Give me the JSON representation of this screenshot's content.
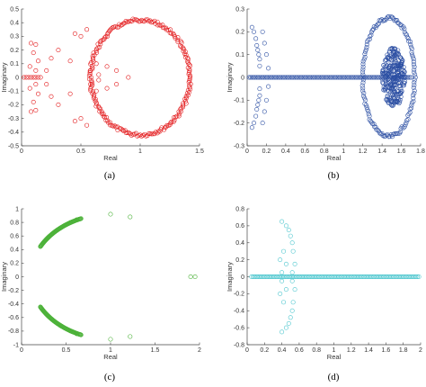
{
  "figure": {
    "captions": [
      "(a)",
      "(b)",
      "(c)",
      "(d)"
    ]
  },
  "chart_data": [
    {
      "type": "scatter",
      "panel": "(a)",
      "xlabel": "Real",
      "ylabel": "Imaginary",
      "xlim": [
        0,
        1.5
      ],
      "ylim": [
        -0.5,
        0.5
      ],
      "xticks": [
        "0",
        "0.5",
        "1",
        "1.5"
      ],
      "yticks": [
        "-0.5",
        "-0.4",
        "-0.3",
        "-0.2",
        "-0.1",
        "0",
        "0.1",
        "0.2",
        "0.3",
        "0.4",
        "0.5"
      ],
      "marker": "open-circle",
      "color": "#e31a1c",
      "grid": false,
      "series": [
        {
          "points": [
            [
              0.02,
              0
            ],
            [
              0.04,
              0
            ],
            [
              0.06,
              0
            ],
            [
              0.08,
              0
            ],
            [
              0.1,
              0
            ],
            [
              0.12,
              0
            ],
            [
              0.14,
              0
            ],
            [
              0.16,
              0
            ],
            [
              0.08,
              0.25
            ],
            [
              0.12,
              0.24
            ],
            [
              0.1,
              0.18
            ],
            [
              0.14,
              0.12
            ],
            [
              0.07,
              0.08
            ],
            [
              0.12,
              0.05
            ],
            [
              0.08,
              -0.25
            ],
            [
              0.12,
              -0.24
            ],
            [
              0.1,
              -0.18
            ],
            [
              0.14,
              -0.12
            ],
            [
              0.07,
              -0.08
            ],
            [
              0.12,
              -0.05
            ],
            [
              0.21,
              0.05
            ],
            [
              0.21,
              -0.05
            ],
            [
              0.25,
              0.14
            ],
            [
              0.25,
              -0.14
            ],
            [
              0.31,
              0.2
            ],
            [
              0.31,
              -0.2
            ],
            [
              0.41,
              0.12
            ],
            [
              0.41,
              -0.12
            ],
            [
              0.45,
              0.32
            ],
            [
              0.45,
              -0.32
            ],
            [
              0.5,
              0.3
            ],
            [
              0.5,
              -0.3
            ],
            [
              0.55,
              0.35
            ],
            [
              0.55,
              -0.35
            ],
            [
              0.58,
              0.05
            ],
            [
              0.58,
              -0.05
            ],
            [
              0.65,
              0.02
            ],
            [
              0.65,
              -0.02
            ],
            [
              0.8,
              0.05
            ],
            [
              0.8,
              -0.05
            ],
            [
              0.9,
              0
            ],
            [
              0.63,
              0.1
            ],
            [
              0.63,
              -0.1
            ],
            [
              0.72,
              0.08
            ],
            [
              0.72,
              -0.08
            ]
          ]
        }
      ],
      "ring": {
        "center": [
          1.0,
          0
        ],
        "rx": 0.42,
        "ry": 0.42,
        "count": 220,
        "color": "#e31a1c"
      }
    },
    {
      "type": "scatter",
      "panel": "(b)",
      "xlabel": "Real",
      "ylabel": "Imaginary",
      "xlim": [
        0,
        1.8
      ],
      "ylim": [
        -0.3,
        0.3
      ],
      "xticks": [
        "0",
        "0.2",
        "0.4",
        "0.6",
        "0.8",
        "1",
        "1.2",
        "1.4",
        "1.6",
        "1.8"
      ],
      "yticks": [
        "-0.3",
        "-0.2",
        "-0.1",
        "0",
        "0.1",
        "0.2",
        "0.3"
      ],
      "marker": "open-circle",
      "color": "#2c4fa3",
      "grid": false,
      "series": [
        {
          "points": [
            [
              0.05,
              0.22
            ],
            [
              0.07,
              0.2
            ],
            [
              0.09,
              0.17
            ],
            [
              0.1,
              0.14
            ],
            [
              0.11,
              0.12
            ],
            [
              0.12,
              0.1
            ],
            [
              0.13,
              0.08
            ],
            [
              0.13,
              0.05
            ],
            [
              0.05,
              -0.22
            ],
            [
              0.07,
              -0.2
            ],
            [
              0.09,
              -0.17
            ],
            [
              0.1,
              -0.14
            ],
            [
              0.11,
              -0.12
            ],
            [
              0.12,
              -0.1
            ],
            [
              0.13,
              -0.08
            ],
            [
              0.13,
              -0.05
            ],
            [
              0.16,
              0.2
            ],
            [
              0.18,
              0.15
            ],
            [
              0.2,
              0.1
            ],
            [
              0.16,
              -0.2
            ],
            [
              0.18,
              -0.15
            ],
            [
              0.2,
              -0.1
            ],
            [
              0.22,
              0.04
            ],
            [
              0.22,
              -0.04
            ]
          ]
        }
      ],
      "ring": {
        "center": [
          1.47,
          0
        ],
        "rx": 0.27,
        "ry": 0.26,
        "count": 140,
        "color": "#2c4fa3"
      },
      "cluster": {
        "center": [
          1.52,
          0
        ],
        "rx": 0.12,
        "ry": 0.13,
        "count": 260
      },
      "real_line": {
        "from": 0.02,
        "to": 1.7,
        "count": 110
      }
    },
    {
      "type": "scatter",
      "panel": "(c)",
      "xlabel": "Real",
      "ylabel": "Imaginary",
      "xlim": [
        0,
        2
      ],
      "ylim": [
        -1,
        1
      ],
      "xticks": [
        "0",
        "0.5",
        "1",
        "1.5",
        "2"
      ],
      "yticks": [
        "-1",
        "-0.8",
        "-0.6",
        "-0.4",
        "-0.2",
        "0",
        "0.2",
        "0.4",
        "0.6",
        "0.8",
        "1"
      ],
      "marker": "open-circle",
      "color": "#4db23a",
      "grid": false,
      "series": [
        {
          "points": [
            [
              1.0,
              0.92
            ],
            [
              1.22,
              0.88
            ],
            [
              1.0,
              -0.92
            ],
            [
              1.22,
              -0.88
            ],
            [
              1.9,
              0
            ],
            [
              1.95,
              0
            ],
            [
              0.62,
              0.84
            ],
            [
              0.55,
              0.8
            ],
            [
              0.62,
              -0.84
            ],
            [
              0.55,
              -0.8
            ]
          ]
        }
      ],
      "arc": {
        "from_angle_deg": 95,
        "to_angle_deg": 125,
        "note": "dense arc left side"
      }
    },
    {
      "type": "scatter",
      "panel": "(d)",
      "xlabel": "Real",
      "ylabel": "Imaginary",
      "xlim": [
        0,
        2
      ],
      "ylim": [
        -0.8,
        0.8
      ],
      "xticks": [
        "0",
        "0.2",
        "0.4",
        "0.6",
        "0.8",
        "1",
        "1.2",
        "1.4",
        "1.6",
        "1.8",
        "2"
      ],
      "yticks": [
        "-0.8",
        "-0.6",
        "-0.4",
        "-0.2",
        "0",
        "0.2",
        "0.4",
        "0.6",
        "0.8"
      ],
      "marker": "open-circle",
      "color": "#4fc7cf",
      "grid": false,
      "series": [
        {
          "points": [
            [
              0.4,
              0.65
            ],
            [
              0.45,
              0.6
            ],
            [
              0.48,
              0.55
            ],
            [
              0.5,
              0.48
            ],
            [
              0.52,
              0.4
            ],
            [
              0.53,
              0.3
            ],
            [
              0.42,
              0.3
            ],
            [
              0.38,
              0.2
            ],
            [
              0.45,
              0.15
            ],
            [
              0.55,
              0.15
            ],
            [
              0.4,
              0.05
            ],
            [
              0.52,
              0.05
            ],
            [
              0.4,
              -0.65
            ],
            [
              0.45,
              -0.6
            ],
            [
              0.48,
              -0.55
            ],
            [
              0.5,
              -0.48
            ],
            [
              0.52,
              -0.4
            ],
            [
              0.53,
              -0.3
            ],
            [
              0.42,
              -0.3
            ],
            [
              0.38,
              -0.2
            ],
            [
              0.45,
              -0.15
            ],
            [
              0.55,
              -0.15
            ],
            [
              0.4,
              -0.05
            ],
            [
              0.52,
              -0.05
            ]
          ]
        }
      ],
      "real_line": {
        "from": 0.05,
        "to": 1.98,
        "count": 120
      }
    }
  ]
}
